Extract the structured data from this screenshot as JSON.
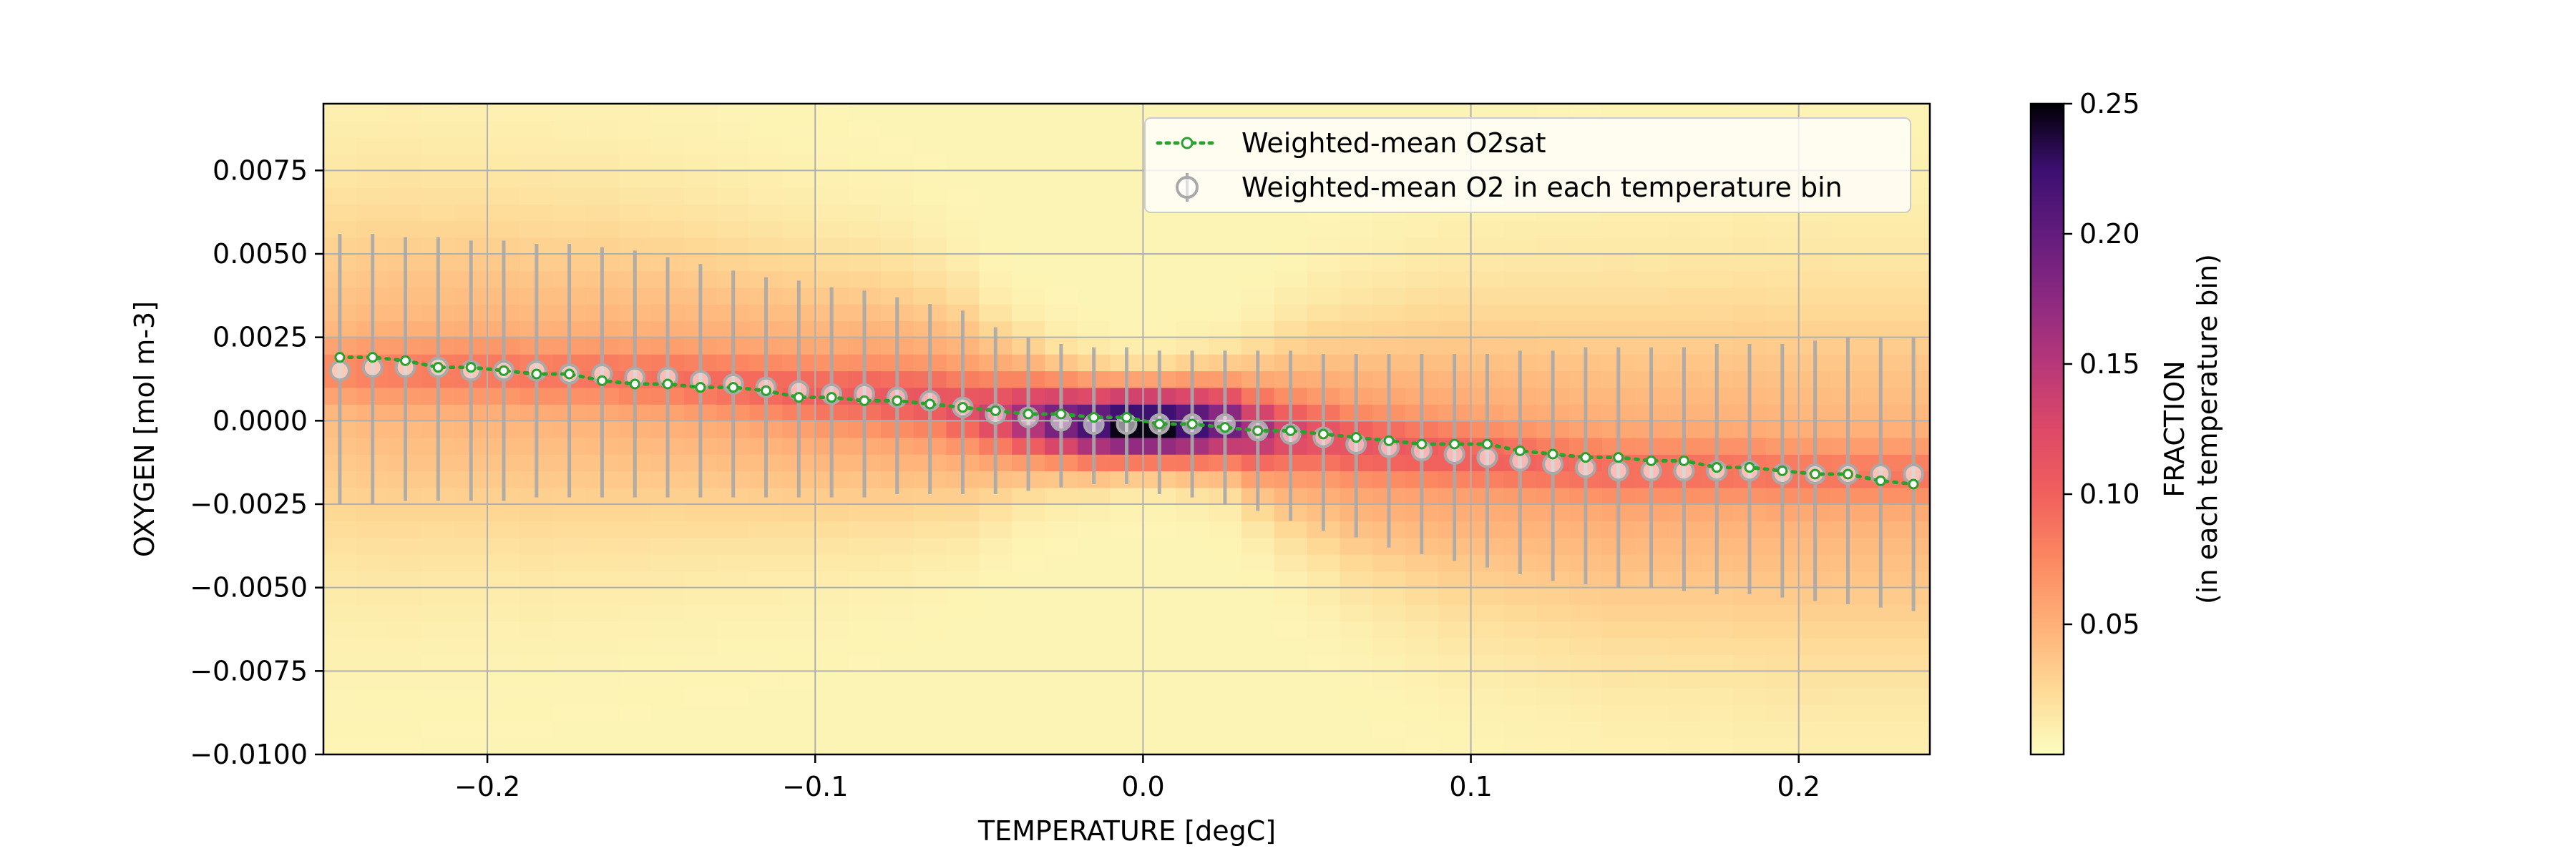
{
  "chart_data": {
    "type": "heatmap",
    "title": "",
    "xlabel": "TEMPERATURE [degC]",
    "ylabel": "OXYGEN [mol m-3]",
    "xlim": [
      -0.25,
      0.24
    ],
    "ylim": [
      -0.01,
      0.0095
    ],
    "grid": true,
    "legend_location": "upper-right",
    "xticks": [
      {
        "value": -0.2,
        "label": "−0.2"
      },
      {
        "value": -0.1,
        "label": "−0.1"
      },
      {
        "value": 0.0,
        "label": "0.0"
      },
      {
        "value": 0.1,
        "label": "0.1"
      },
      {
        "value": 0.2,
        "label": "0.2"
      }
    ],
    "yticks": [
      {
        "value": 0.0075,
        "label": "0.0075"
      },
      {
        "value": 0.005,
        "label": "0.0050"
      },
      {
        "value": 0.0025,
        "label": "0.0025"
      },
      {
        "value": 0.0,
        "label": "0.0000"
      },
      {
        "value": -0.0025,
        "label": "−0.0025"
      },
      {
        "value": -0.005,
        "label": "−0.0050"
      },
      {
        "value": -0.0075,
        "label": "−0.0075"
      },
      {
        "value": -0.01,
        "label": "−0.0100"
      }
    ],
    "colorbar": {
      "label_line1": "FRACTION",
      "label_line2": "(in each temperature bin)",
      "min": 0.0,
      "max": 0.25,
      "colormap": "magma_r",
      "ticks": [
        {
          "value": 0.05,
          "label": "0.05"
        },
        {
          "value": 0.1,
          "label": "0.10"
        },
        {
          "value": 0.15,
          "label": "0.15"
        },
        {
          "value": 0.2,
          "label": "0.20"
        },
        {
          "value": 0.25,
          "label": "0.25"
        }
      ]
    },
    "heatmap_model": {
      "description_of_values": "fraction per temperature bin",
      "temperature_bin_width": 0.01,
      "oxygen_bin_width": 0.0005,
      "temperature_bin_centers": [
        -0.245,
        -0.235,
        -0.225,
        -0.215,
        -0.205,
        -0.195,
        -0.185,
        -0.175,
        -0.165,
        -0.155,
        -0.145,
        -0.135,
        -0.125,
        -0.115,
        -0.105,
        -0.095,
        -0.085,
        -0.075,
        -0.065,
        -0.055,
        -0.045,
        -0.035,
        -0.025,
        -0.015,
        -0.005,
        0.005,
        0.015,
        0.025,
        0.035,
        0.045,
        0.055,
        0.065,
        0.075,
        0.085,
        0.095,
        0.105,
        0.115,
        0.125,
        0.135,
        0.145,
        0.155,
        0.165,
        0.175,
        0.185,
        0.195,
        0.205,
        0.215,
        0.225,
        0.235
      ],
      "o2_center": [
        0.0015,
        0.0015,
        0.0015,
        0.0015,
        0.0015,
        0.0015,
        0.0014,
        0.0014,
        0.0014,
        0.0013,
        0.0013,
        0.0012,
        0.0011,
        0.001,
        0.0009,
        0.0008,
        0.0008,
        0.0007,
        0.0006,
        0.0004,
        0.0002,
        0.0001,
        0.0,
        -0.0001,
        -0.0001,
        -0.0001,
        -0.0001,
        -0.0001,
        -0.0003,
        -0.0004,
        -0.0005,
        -0.0007,
        -0.0008,
        -0.0009,
        -0.001,
        -0.0011,
        -0.0012,
        -0.0013,
        -0.0014,
        -0.0015,
        -0.0015,
        -0.0015,
        -0.0015,
        -0.0015,
        -0.0016,
        -0.0016,
        -0.0016,
        -0.0016,
        -0.0016
      ],
      "peak_fraction": [
        0.07,
        0.075,
        0.077,
        0.078,
        0.079,
        0.08,
        0.08,
        0.081,
        0.082,
        0.083,
        0.085,
        0.087,
        0.089,
        0.091,
        0.094,
        0.097,
        0.1,
        0.103,
        0.107,
        0.113,
        0.13,
        0.16,
        0.19,
        0.215,
        0.245,
        0.245,
        0.22,
        0.19,
        0.155,
        0.125,
        0.113,
        0.107,
        0.103,
        0.1,
        0.097,
        0.094,
        0.092,
        0.09,
        0.088,
        0.087,
        0.086,
        0.085,
        0.084,
        0.083,
        0.082,
        0.081,
        0.08,
        0.08,
        0.08
      ],
      "spread": [
        0.0036,
        0.0036,
        0.0036,
        0.0035,
        0.0035,
        0.0034,
        0.0034,
        0.0033,
        0.0033,
        0.0032,
        0.0031,
        0.003,
        0.0029,
        0.0028,
        0.0027,
        0.0026,
        0.0025,
        0.0024,
        0.0022,
        0.002,
        0.0016,
        0.0013,
        0.0011,
        0.001,
        0.0009,
        0.0009,
        0.001,
        0.0011,
        0.0014,
        0.0018,
        0.0021,
        0.0024,
        0.0026,
        0.0028,
        0.003,
        0.0031,
        0.0032,
        0.0033,
        0.0034,
        0.0035,
        0.0035,
        0.0036,
        0.0036,
        0.0037,
        0.0037,
        0.0038,
        0.0038,
        0.0038,
        0.0038
      ]
    },
    "series": [
      {
        "name": "Weighted-mean O2sat",
        "style": "dotted-line-open-circle",
        "color": "#2ca02c",
        "x": [
          -0.245,
          -0.235,
          -0.225,
          -0.215,
          -0.205,
          -0.195,
          -0.185,
          -0.175,
          -0.165,
          -0.155,
          -0.145,
          -0.135,
          -0.125,
          -0.115,
          -0.105,
          -0.095,
          -0.085,
          -0.075,
          -0.065,
          -0.055,
          -0.045,
          -0.035,
          -0.025,
          -0.015,
          -0.005,
          0.005,
          0.015,
          0.025,
          0.035,
          0.045,
          0.055,
          0.065,
          0.075,
          0.085,
          0.095,
          0.105,
          0.115,
          0.125,
          0.135,
          0.145,
          0.155,
          0.165,
          0.175,
          0.185,
          0.195,
          0.205,
          0.215,
          0.225,
          0.235
        ],
        "y": [
          0.0019,
          0.0019,
          0.0018,
          0.0016,
          0.0016,
          0.0015,
          0.0014,
          0.0014,
          0.0012,
          0.0011,
          0.0011,
          0.001,
          0.001,
          0.0009,
          0.0007,
          0.0007,
          0.0006,
          0.0006,
          0.0005,
          0.0004,
          0.0003,
          0.0002,
          0.0002,
          0.0001,
          0.0001,
          -0.0001,
          -0.0001,
          -0.0002,
          -0.0003,
          -0.0003,
          -0.0004,
          -0.0005,
          -0.0006,
          -0.0007,
          -0.0007,
          -0.0007,
          -0.0009,
          -0.001,
          -0.0011,
          -0.0011,
          -0.0012,
          -0.0012,
          -0.0014,
          -0.0014,
          -0.0015,
          -0.0016,
          -0.0016,
          -0.0018,
          -0.0019
        ]
      },
      {
        "name": "Weighted-mean O2 in each temperature bin",
        "style": "errorbar-circle",
        "color": "#a9a9a9",
        "x": [
          -0.245,
          -0.235,
          -0.225,
          -0.215,
          -0.205,
          -0.195,
          -0.185,
          -0.175,
          -0.165,
          -0.155,
          -0.145,
          -0.135,
          -0.125,
          -0.115,
          -0.105,
          -0.095,
          -0.085,
          -0.075,
          -0.065,
          -0.055,
          -0.045,
          -0.035,
          -0.025,
          -0.015,
          -0.005,
          0.005,
          0.015,
          0.025,
          0.035,
          0.045,
          0.055,
          0.065,
          0.075,
          0.085,
          0.095,
          0.105,
          0.115,
          0.125,
          0.135,
          0.145,
          0.155,
          0.165,
          0.175,
          0.185,
          0.195,
          0.205,
          0.215,
          0.225,
          0.235
        ],
        "y": [
          0.0015,
          0.0016,
          0.0016,
          0.0016,
          0.0015,
          0.0015,
          0.0015,
          0.0014,
          0.0014,
          0.0013,
          0.0013,
          0.0012,
          0.0011,
          0.001,
          0.0009,
          0.0008,
          0.0008,
          0.0007,
          0.0006,
          0.0004,
          0.0002,
          0.0001,
          0.0,
          -0.0001,
          -0.0001,
          -0.0001,
          -0.0001,
          -0.0001,
          -0.0003,
          -0.0004,
          -0.0005,
          -0.0007,
          -0.0008,
          -0.0009,
          -0.001,
          -0.0011,
          -0.0012,
          -0.0013,
          -0.0014,
          -0.0015,
          -0.0015,
          -0.0015,
          -0.0015,
          -0.0015,
          -0.0016,
          -0.0016,
          -0.0016,
          -0.0016,
          -0.0016
        ],
        "err_upper": [
          0.0056,
          0.0056,
          0.0055,
          0.0055,
          0.0054,
          0.0054,
          0.0053,
          0.0053,
          0.0052,
          0.0051,
          0.0049,
          0.0047,
          0.0045,
          0.0043,
          0.0042,
          0.004,
          0.0039,
          0.0037,
          0.0035,
          0.0033,
          0.0028,
          0.0025,
          0.0023,
          0.0022,
          0.0022,
          0.0021,
          0.0021,
          0.0021,
          0.0021,
          0.0021,
          0.002,
          0.002,
          0.002,
          0.002,
          0.002,
          0.002,
          0.0021,
          0.0021,
          0.0022,
          0.0022,
          0.0022,
          0.0022,
          0.0023,
          0.0023,
          0.0023,
          0.0024,
          0.0025,
          0.0025,
          0.0025
        ],
        "err_lower": [
          -0.0025,
          -0.0025,
          -0.0024,
          -0.0024,
          -0.0024,
          -0.0024,
          -0.0023,
          -0.0023,
          -0.0023,
          -0.0023,
          -0.0023,
          -0.0023,
          -0.0023,
          -0.0023,
          -0.0023,
          -0.0023,
          -0.0023,
          -0.0022,
          -0.0022,
          -0.0022,
          -0.0022,
          -0.0021,
          -0.002,
          -0.0019,
          -0.0019,
          -0.0022,
          -0.0023,
          -0.0025,
          -0.0027,
          -0.003,
          -0.0033,
          -0.0035,
          -0.0038,
          -0.004,
          -0.0042,
          -0.0044,
          -0.0046,
          -0.0048,
          -0.0049,
          -0.005,
          -0.005,
          -0.0051,
          -0.0052,
          -0.0052,
          -0.0053,
          -0.0054,
          -0.0055,
          -0.0056,
          -0.0057
        ]
      }
    ]
  }
}
